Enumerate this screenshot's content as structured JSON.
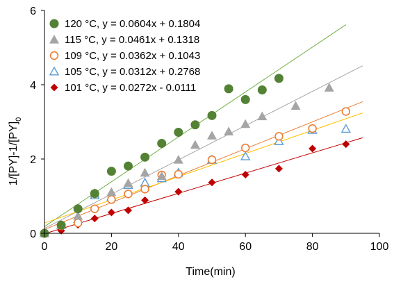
{
  "chart_data": {
    "type": "scatter",
    "title": "",
    "xlabel": "Time(min)",
    "ylabel": "1/[PY]-1/[PY]",
    "ylabel_subscript": "0",
    "xlim": [
      0,
      100
    ],
    "ylim": [
      0,
      6
    ],
    "x_ticks": [
      "0",
      "20",
      "40",
      "60",
      "80",
      "100"
    ],
    "y_ticks": [
      "0",
      "2",
      "4",
      "6"
    ],
    "grid": false,
    "legend_position": "top-left",
    "series": [
      {
        "name": "120  °C, y = 0.0604x + 0.1804",
        "marker": "circle-filled",
        "color": "#548235",
        "trendline_color": "#70AD47",
        "fit": {
          "slope": 0.0604,
          "intercept": 0.1804,
          "x_start": 0,
          "x_end": 90
        },
        "x": [
          0,
          5,
          10,
          15,
          20,
          25,
          30,
          35,
          40,
          45,
          50,
          55,
          60,
          65,
          70
        ],
        "y": [
          0,
          0.22,
          0.66,
          1.07,
          1.67,
          1.81,
          2.05,
          2.42,
          2.72,
          2.92,
          3.17,
          3.89,
          3.6,
          3.86,
          4.17
        ]
      },
      {
        "name": "115  °C, y = 0.0461x + 0.1318",
        "marker": "triangle-filled",
        "color": "#A5A5A5",
        "trendline_color": "#A5A5A5",
        "fit": {
          "slope": 0.0461,
          "intercept": 0.1318,
          "x_start": 0,
          "x_end": 95
        },
        "x": [
          0,
          5,
          10,
          15,
          20,
          25,
          30,
          35,
          40,
          45,
          50,
          55,
          60,
          65,
          75,
          85
        ],
        "y": [
          0,
          0.23,
          0.47,
          1.08,
          1.11,
          1.35,
          1.63,
          1.54,
          1.98,
          2.38,
          2.63,
          2.74,
          2.94,
          3.15,
          3.43,
          3.92
        ]
      },
      {
        "name": "109  °C, y = 0.0362x + 0.1043",
        "marker": "circle-open",
        "color": "#ED7D31",
        "trendline_color": "#ED7D31",
        "fit": {
          "slope": 0.0362,
          "intercept": 0.1043,
          "x_start": 0,
          "x_end": 95
        },
        "x": [
          0,
          5,
          10,
          15,
          20,
          25,
          30,
          35,
          40,
          50,
          60,
          70,
          80,
          90
        ],
        "y": [
          0,
          0.2,
          0.28,
          0.66,
          0.91,
          1.06,
          1.19,
          1.57,
          1.59,
          1.98,
          2.3,
          2.61,
          2.82,
          3.28
        ]
      },
      {
        "name": "105 °C, y = 0.0312x + 0.2768",
        "marker": "triangle-open",
        "color": "#5B9BD5",
        "trendline_color": "#FFC000",
        "fit": {
          "slope": 0.0312,
          "intercept": 0.2768,
          "x_start": 0,
          "x_end": 95
        },
        "x": [
          0,
          5,
          10,
          15,
          20,
          25,
          30,
          35,
          40,
          50,
          60,
          70,
          80,
          90
        ],
        "y": [
          0,
          0.22,
          0.38,
          1.02,
          0.98,
          1.3,
          1.36,
          1.48,
          1.63,
          1.98,
          2.07,
          2.48,
          2.78,
          2.81
        ]
      },
      {
        "name": "101 °C, y = 0.0272x - 0.0111",
        "marker": "diamond-filled",
        "color": "#C00000",
        "trendline_color": "#C00000",
        "fit": {
          "slope": 0.0272,
          "intercept": -0.0111,
          "x_start": 0,
          "x_end": 95
        },
        "x": [
          0,
          5,
          10,
          15,
          20,
          25,
          30,
          40,
          50,
          60,
          70,
          80,
          90
        ],
        "y": [
          0,
          0.07,
          0.23,
          0.4,
          0.56,
          0.62,
          0.89,
          1.12,
          1.37,
          1.58,
          1.74,
          2.28,
          2.4
        ]
      }
    ]
  }
}
